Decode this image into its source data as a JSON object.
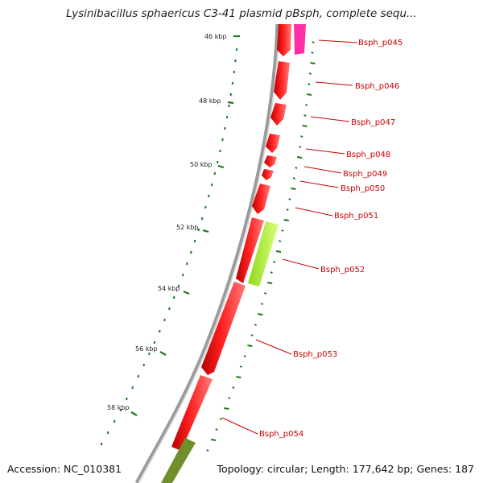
{
  "title": "Lysinibacillus sphaericus C3-41 plasmid pBsph, complete sequ...",
  "accession": "Accession: NC_010381",
  "summary": "Topology: circular; Length: 177,642 bp; Genes: 187",
  "colors": {
    "backbone": "#8c8c8c",
    "gene_default": "#ff1a1a",
    "gene_magenta": "#ff2fa8",
    "gene_lime": "#b8ff3a",
    "gene_olive": "#6f8f2a",
    "gc_skew": "#1a7a1a",
    "label": "#cc0000"
  },
  "scale_ticks": [
    {
      "label": "46 kbp"
    },
    {
      "label": "48 kbp"
    },
    {
      "label": "50 kbp"
    },
    {
      "label": "52 kbp"
    },
    {
      "label": "54 kbp"
    },
    {
      "label": "56 kbp"
    },
    {
      "label": "58 kbp"
    }
  ],
  "genes": [
    {
      "label": "Bsph_p045"
    },
    {
      "label": "Bsph_p046"
    },
    {
      "label": "Bsph_p047"
    },
    {
      "label": "Bsph_p048"
    },
    {
      "label": "Bsph_p049"
    },
    {
      "label": "Bsph_p050"
    },
    {
      "label": "Bsph_p051"
    },
    {
      "label": "Bsph_p052"
    },
    {
      "label": "Bsph_p053"
    },
    {
      "label": "Bsph_p054"
    }
  ]
}
